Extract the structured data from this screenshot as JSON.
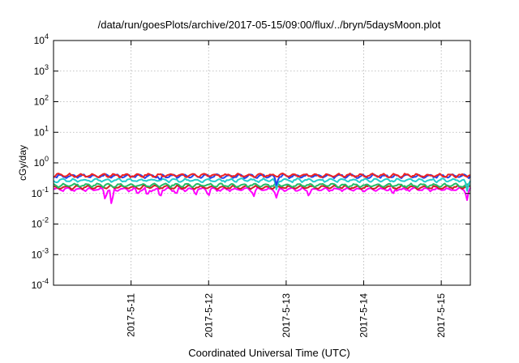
{
  "chart_data": {
    "type": "line",
    "title": "/data/run/goesPlots/archive/2017-05-15/09:00/flux/../bryn/5daysMoon.plot",
    "xlabel": "Coordinated Universal Time (UTC)",
    "ylabel": "cGy/day",
    "xlim": [
      "2017-05-10 00:00",
      "2017-05-15 09:00"
    ],
    "ylim": [
      0.0001,
      10000
    ],
    "y_scale": "log",
    "grid": true,
    "x_ticks": [
      "2017-5-11",
      "2017-5-12",
      "2017-5-13",
      "2017-5-14",
      "2017-5-15"
    ],
    "y_ticks": [
      {
        "base": "10",
        "exp": "-4"
      },
      {
        "base": "10",
        "exp": "-3"
      },
      {
        "base": "10",
        "exp": "-2"
      },
      {
        "base": "10",
        "exp": "-1"
      },
      {
        "base": "10",
        "exp": "0"
      },
      {
        "base": "10",
        "exp": "1"
      },
      {
        "base": "10",
        "exp": "2"
      },
      {
        "base": "10",
        "exp": "3"
      },
      {
        "base": "10",
        "exp": "4"
      }
    ],
    "series": [
      {
        "color": "#ff00ff",
        "base": 0.135,
        "dips": [
          {
            "t": "2017-05-10 16:00",
            "v": 0.06
          },
          {
            "t": "2017-05-10 18:00",
            "v": 0.035
          },
          {
            "t": "2017-05-11 02:00",
            "v": 0.09
          },
          {
            "t": "2017-05-11 05:00",
            "v": 0.08
          },
          {
            "t": "2017-05-11 09:00",
            "v": 0.07
          },
          {
            "t": "2017-05-11 14:00",
            "v": 0.09
          },
          {
            "t": "2017-05-11 20:00",
            "v": 0.085
          },
          {
            "t": "2017-05-12 00:00",
            "v": 0.08
          },
          {
            "t": "2017-05-12 14:00",
            "v": 0.08
          },
          {
            "t": "2017-05-12 21:00",
            "v": 0.07
          },
          {
            "t": "2017-05-13 07:00",
            "v": 0.08
          },
          {
            "t": "2017-05-14 09:00",
            "v": 0.09
          },
          {
            "t": "2017-05-15 08:00",
            "v": 0.06
          }
        ]
      },
      {
        "color": "#cc2222",
        "base": 0.16,
        "dips": []
      },
      {
        "color": "#22bb66",
        "base": 0.185,
        "dips": []
      },
      {
        "color": "#22cccc",
        "base": 0.27,
        "dips": [
          {
            "t": "2017-05-12 21:00",
            "v": 0.13
          },
          {
            "t": "2017-05-15 08:00",
            "v": 0.12
          }
        ]
      },
      {
        "color": "#2244ee",
        "base": 0.37,
        "dips": [
          {
            "t": "2017-05-11 09:00",
            "v": 0.25
          },
          {
            "t": "2017-05-12 21:00",
            "v": 0.18
          }
        ]
      },
      {
        "color": "#ee2222",
        "base": 0.39,
        "dips": []
      }
    ]
  }
}
